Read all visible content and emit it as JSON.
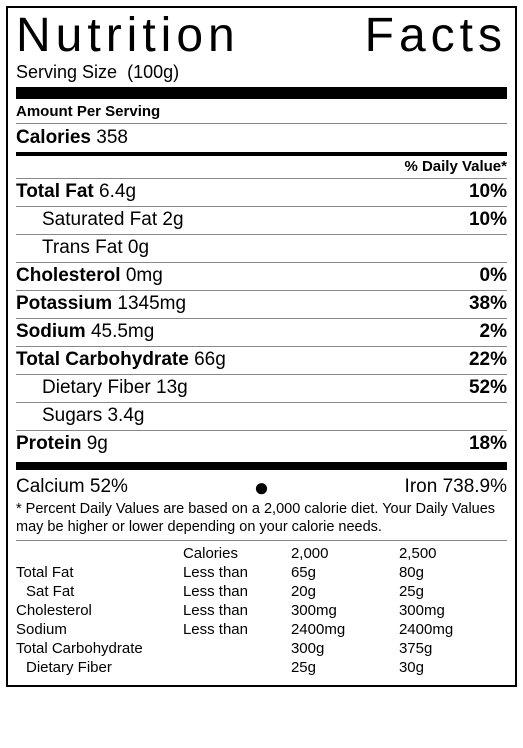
{
  "title": "Nutrition Facts",
  "serving": {
    "label": "Serving Size",
    "value": "(100g)"
  },
  "amount_per_serving": "Amount Per Serving",
  "calories": {
    "label": "Calories",
    "value": "358"
  },
  "dv_header": "% Daily Value*",
  "nutrients": {
    "total_fat": {
      "name": "Total Fat",
      "amount": "6.4g",
      "dv": "10%"
    },
    "sat_fat": {
      "name": "Saturated Fat",
      "amount": "2g",
      "dv": "10%"
    },
    "trans_fat": {
      "name": "Trans Fat",
      "amount": "0g",
      "dv": ""
    },
    "cholesterol": {
      "name": "Cholesterol",
      "amount": "0mg",
      "dv": "0%"
    },
    "potassium": {
      "name": "Potassium",
      "amount": "1345mg",
      "dv": "38%"
    },
    "sodium": {
      "name": "Sodium",
      "amount": "45.5mg",
      "dv": "2%"
    },
    "total_carb": {
      "name": "Total Carbohydrate",
      "amount": "66g",
      "dv": "22%"
    },
    "fiber": {
      "name": "Dietary Fiber",
      "amount": "13g",
      "dv": "52%"
    },
    "sugars": {
      "name": "Sugars",
      "amount": "3.4g",
      "dv": ""
    },
    "protein": {
      "name": "Protein",
      "amount": "9g",
      "dv": "18%"
    }
  },
  "vitamins": {
    "calcium": "Calcium 52%",
    "bullet": "●",
    "iron": "Iron 738.9%"
  },
  "footnote": "* Percent Daily Values are based on a 2,000 calorie diet. Your Daily Values may be higher or lower depending on your calorie needs.",
  "ref_table": {
    "header": {
      "c1": "",
      "c2": "Calories",
      "c3": "2,000",
      "c4": "2,500"
    },
    "rows": [
      {
        "c1": "Total Fat",
        "c2": "Less than",
        "c3": "65g",
        "c4": "80g",
        "indent": false
      },
      {
        "c1": "Sat Fat",
        "c2": "Less than",
        "c3": "20g",
        "c4": "25g",
        "indent": true
      },
      {
        "c1": "Cholesterol",
        "c2": "Less than",
        "c3": "300mg",
        "c4": "300mg",
        "indent": false
      },
      {
        "c1": "Sodium",
        "c2": "Less than",
        "c3": "2400mg",
        "c4": "2400mg",
        "indent": false
      },
      {
        "c1": "Total Carbohydrate",
        "c2": "",
        "c3": "300g",
        "c4": "375g",
        "indent": false
      },
      {
        "c1": "Dietary Fiber",
        "c2": "",
        "c3": "25g",
        "c4": "30g",
        "indent": true
      }
    ]
  },
  "colors": {
    "text": "#000000",
    "background": "#ffffff",
    "rule": "#888888"
  }
}
